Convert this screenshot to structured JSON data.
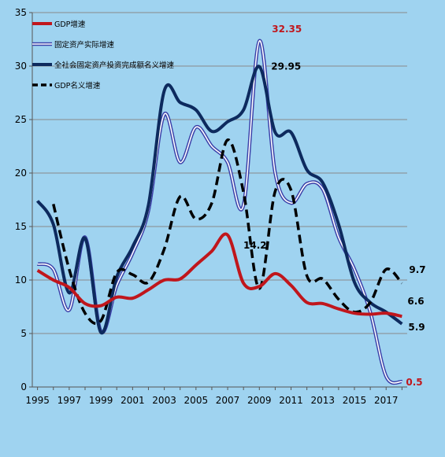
{
  "chart_data": {
    "type": "line",
    "x": [
      1995,
      1996,
      1997,
      1998,
      1999,
      2000,
      2001,
      2002,
      2003,
      2004,
      2005,
      2006,
      2007,
      2008,
      2009,
      2010,
      2011,
      2012,
      2013,
      2014,
      2015,
      2016,
      2017,
      2018
    ],
    "xticks": [
      1995,
      1997,
      1999,
      2001,
      2003,
      2005,
      2007,
      2009,
      2011,
      2013,
      2015,
      2017
    ],
    "ylim": [
      0,
      35
    ],
    "yticks": [
      0,
      5,
      10,
      15,
      20,
      25,
      30,
      35
    ],
    "grid": "horizontal",
    "legend_position": "top-left",
    "series": [
      {
        "name": "GDP增速",
        "color": "#c0161c",
        "style": "solid-thick",
        "values": [
          10.9,
          10.0,
          9.3,
          7.8,
          7.6,
          8.4,
          8.3,
          9.1,
          10.0,
          10.1,
          11.4,
          12.7,
          14.2,
          9.7,
          9.4,
          10.6,
          9.5,
          7.9,
          7.8,
          7.3,
          6.9,
          6.8,
          6.9,
          6.6
        ]
      },
      {
        "name": "固定资产实际增速",
        "color": "#3a3fa8",
        "style": "double",
        "values": [
          11.5,
          11.0,
          7.2,
          14.0,
          5.2,
          9.5,
          12.5,
          16.5,
          25.5,
          21.0,
          24.3,
          22.5,
          21.0,
          17.0,
          32.35,
          20.0,
          17.2,
          19.0,
          18.5,
          14.0,
          11.0,
          7.0,
          1.0,
          0.5
        ]
      },
      {
        "name": "全社会固定资产投资完成额名义增速",
        "color": "#0d2a5e",
        "style": "solid-thick",
        "values": [
          17.4,
          15.2,
          8.8,
          13.9,
          5.1,
          10.3,
          13.1,
          17.0,
          27.7,
          26.6,
          25.9,
          23.9,
          24.8,
          25.9,
          29.95,
          23.8,
          23.8,
          20.3,
          19.1,
          15.2,
          9.8,
          7.9,
          7.0,
          5.9
        ]
      },
      {
        "name": "GDP名义增速",
        "color": "#000000",
        "style": "dashed",
        "values": [
          null,
          17.1,
          11.0,
          6.9,
          6.2,
          10.7,
          10.5,
          9.8,
          12.9,
          17.8,
          15.7,
          17.2,
          23.1,
          18.2,
          9.2,
          18.3,
          18.4,
          10.4,
          10.1,
          8.2,
          7.0,
          7.9,
          11.0,
          9.7
        ]
      }
    ],
    "annotations": [
      {
        "text": "32.35",
        "x": 2009,
        "y": 32.35,
        "color": "#c0161c",
        "bold": true
      },
      {
        "text": "29.95",
        "x": 2009,
        "y": 29.95,
        "color": "#000000",
        "bold": true
      },
      {
        "text": "14.2",
        "x": 2007,
        "y": 14.2,
        "color": "#000000",
        "bold": false
      },
      {
        "text": "9.7",
        "x": 2018,
        "y": 9.7,
        "color": "#000000",
        "bold": false
      },
      {
        "text": "6.6",
        "x": 2018,
        "y": 6.6,
        "color": "#000000",
        "bold": false
      },
      {
        "text": "5.9",
        "x": 2018,
        "y": 5.9,
        "color": "#000000",
        "bold": true
      },
      {
        "text": "0.5",
        "x": 2018,
        "y": 0.5,
        "color": "#c0161c",
        "bold": true
      }
    ]
  }
}
